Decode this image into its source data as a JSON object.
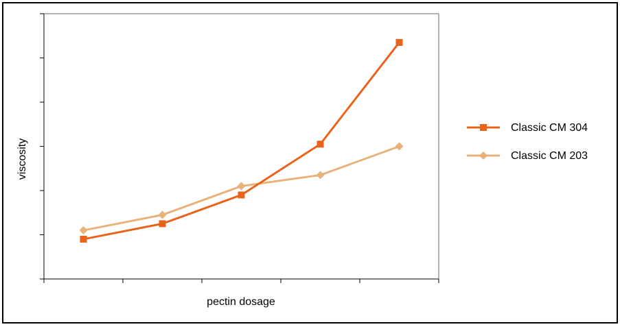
{
  "chart_data": {
    "type": "line",
    "title": "",
    "xlabel": "pectin dosage",
    "ylabel": "viscosity",
    "x": [
      1,
      2,
      3,
      4,
      5
    ],
    "xlim": [
      0.5,
      5.5
    ],
    "ylim": [
      0,
      6
    ],
    "grid": false,
    "legend_position": "right",
    "series": [
      {
        "name": "Classic CM 304",
        "color": "#e8641b",
        "marker": "square",
        "values": [
          0.9,
          1.25,
          1.9,
          3.05,
          5.35
        ]
      },
      {
        "name": "Classic CM 203",
        "color": "#e8b27a",
        "marker": "diamond",
        "values": [
          1.1,
          1.45,
          2.1,
          2.35,
          3.0
        ]
      }
    ]
  }
}
